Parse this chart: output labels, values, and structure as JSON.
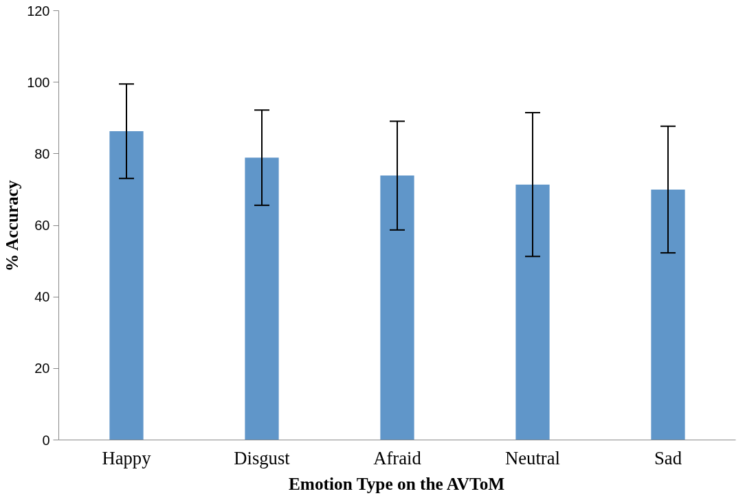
{
  "chart_data": {
    "type": "bar",
    "xlabel": "Emotion Type on the AVToM",
    "ylabel": "% Accuracy",
    "categories": [
      "Happy",
      "Disgust",
      "Afraid",
      "Neutral",
      "Sad"
    ],
    "values": [
      86.3,
      78.9,
      73.9,
      71.4,
      70.0
    ],
    "errors": [
      13.2,
      13.3,
      15.2,
      20.1,
      17.7
    ],
    "color": "#6096c9",
    "ylim": [
      0,
      120
    ],
    "yticks": [
      0,
      20,
      40,
      60,
      80,
      100,
      120
    ],
    "grid": false
  }
}
